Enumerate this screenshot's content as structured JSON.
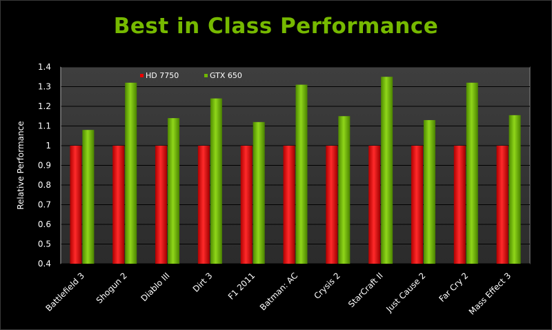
{
  "chart_data": {
    "type": "bar",
    "title": "Best in Class Performance",
    "ylabel": "Relative Performance",
    "xlabel": "",
    "ylim": [
      0.4,
      1.4
    ],
    "ytick_step": 0.1,
    "grid": true,
    "legend_position": "top-left",
    "categories": [
      "Battlefield 3",
      "Shogun 2",
      "Diablo III",
      "Dirt 3",
      "F1 2011",
      "Batman: AC",
      "Crysis 2",
      "StarCraft II",
      "Just Cause 2",
      "Far Cry 2",
      "Mass Effect 3"
    ],
    "series": [
      {
        "name": "HD 7750",
        "color": "#ee0000",
        "values": [
          1,
          1,
          1,
          1,
          1,
          1,
          1,
          1,
          1,
          1,
          1
        ]
      },
      {
        "name": "GTX 650",
        "color": "#6fb600",
        "values": [
          1.08,
          1.32,
          1.14,
          1.24,
          1.12,
          1.31,
          1.15,
          1.35,
          1.13,
          1.32,
          1.155
        ]
      }
    ]
  }
}
